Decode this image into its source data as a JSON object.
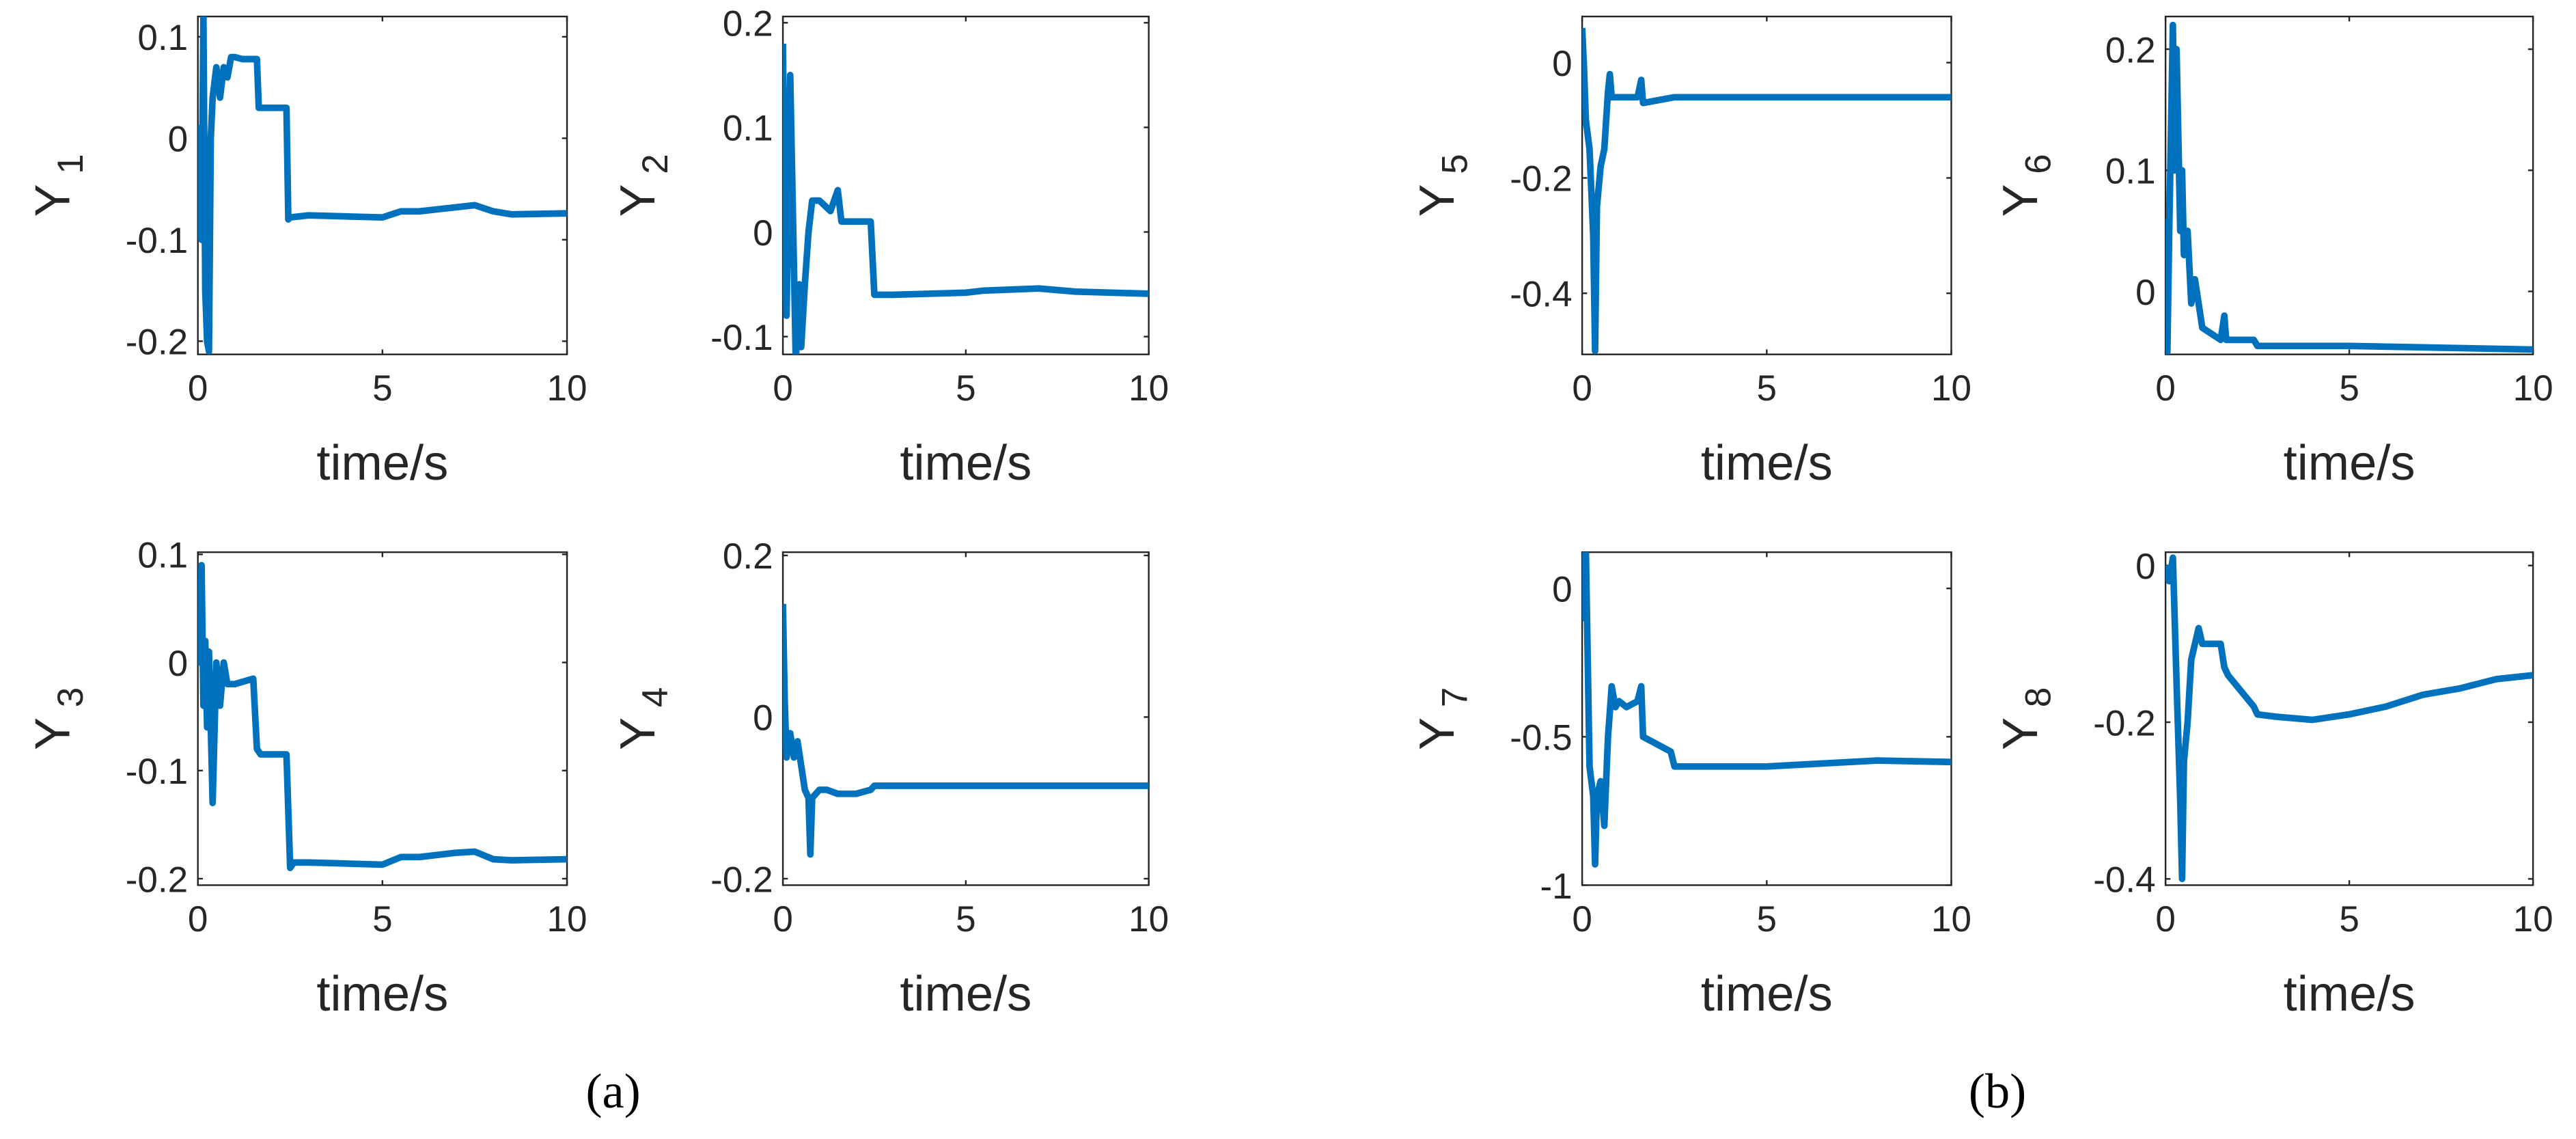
{
  "chart_data": [
    {
      "type": "line",
      "ylabel": "Y",
      "ylabel_subscript": "1",
      "xlabel": "time/s",
      "xlim": [
        0,
        10
      ],
      "xticks": [
        0,
        5,
        10
      ],
      "ylim": [
        -0.213,
        0.12
      ],
      "yticks": [
        -0.2,
        -0.1,
        0,
        0.1
      ],
      "series": [
        {
          "color": "#0072bd",
          "x": [
            0,
            0.05,
            0.1,
            0.15,
            0.2,
            0.25,
            0.3,
            0.35,
            0.4,
            0.5,
            0.6,
            0.7,
            0.8,
            0.9,
            1.0,
            1.2,
            1.6,
            1.65,
            2.4,
            2.45,
            2.5,
            3,
            4,
            5,
            5.5,
            6,
            7,
            7.5,
            8,
            8.5,
            10
          ],
          "values": [
            -0.1,
            0.01,
            -0.1,
            0.12,
            -0.15,
            -0.2,
            -0.21,
            0.0,
            0.04,
            0.07,
            0.04,
            0.07,
            0.06,
            0.08,
            0.08,
            0.078,
            0.078,
            0.03,
            0.03,
            -0.08,
            -0.078,
            -0.076,
            -0.077,
            -0.078,
            -0.072,
            -0.072,
            -0.068,
            -0.066,
            -0.072,
            -0.075,
            -0.074
          ]
        }
      ]
    },
    {
      "type": "line",
      "ylabel": "Y",
      "ylabel_subscript": "2",
      "xlabel": "time/s",
      "xlim": [
        0,
        10
      ],
      "xticks": [
        0,
        5,
        10
      ],
      "ylim": [
        -0.117,
        0.206
      ],
      "yticks": [
        -0.1,
        0,
        0.1,
        0.2
      ],
      "series": [
        {
          "color": "#0072bd",
          "x": [
            0,
            0.05,
            0.1,
            0.2,
            0.3,
            0.35,
            0.4,
            0.45,
            0.5,
            0.6,
            0.7,
            0.8,
            1.0,
            1.3,
            1.5,
            1.6,
            1.8,
            2.4,
            2.5,
            3,
            5,
            5.5,
            7,
            8,
            10
          ],
          "values": [
            0.18,
            0.02,
            -0.08,
            0.15,
            -0.03,
            -0.12,
            -0.1,
            -0.05,
            -0.11,
            -0.05,
            0.0,
            0.03,
            0.03,
            0.02,
            0.04,
            0.01,
            0.01,
            0.01,
            -0.06,
            -0.06,
            -0.058,
            -0.056,
            -0.054,
            -0.057,
            -0.059
          ]
        }
      ]
    },
    {
      "type": "line",
      "ylabel": "Y",
      "ylabel_subscript": "3",
      "xlabel": "time/s",
      "xlim": [
        0,
        10
      ],
      "xticks": [
        0,
        5,
        10
      ],
      "ylim": [
        -0.206,
        0.102
      ],
      "yticks": [
        -0.2,
        -0.1,
        0,
        0.1
      ],
      "series": [
        {
          "color": "#0072bd",
          "x": [
            0,
            0.05,
            0.1,
            0.15,
            0.2,
            0.25,
            0.3,
            0.4,
            0.5,
            0.6,
            0.7,
            0.8,
            0.9,
            1.0,
            1.5,
            1.6,
            1.7,
            2.4,
            2.5,
            2.6,
            3,
            4,
            5,
            5.5,
            6,
            7,
            7.5,
            8,
            8.5,
            10
          ],
          "values": [
            0.04,
            0.0,
            0.09,
            -0.04,
            0.02,
            -0.06,
            0.01,
            -0.13,
            0.0,
            -0.04,
            0.0,
            -0.02,
            -0.02,
            -0.02,
            -0.015,
            -0.08,
            -0.085,
            -0.085,
            -0.19,
            -0.185,
            -0.185,
            -0.186,
            -0.187,
            -0.18,
            -0.18,
            -0.176,
            -0.175,
            -0.182,
            -0.183,
            -0.182
          ]
        }
      ]
    },
    {
      "type": "line",
      "ylabel": "Y",
      "ylabel_subscript": "4",
      "xlabel": "time/s",
      "xlim": [
        0,
        10
      ],
      "xticks": [
        0,
        5,
        10
      ],
      "ylim": [
        -0.208,
        0.204
      ],
      "yticks": [
        -0.2,
        0,
        0.2
      ],
      "series": [
        {
          "color": "#0072bd",
          "x": [
            0,
            0.05,
            0.1,
            0.2,
            0.3,
            0.4,
            0.5,
            0.6,
            0.7,
            0.75,
            0.8,
            1.0,
            1.2,
            1.5,
            2,
            2.4,
            2.5,
            5,
            10
          ],
          "values": [
            0.14,
            0.02,
            -0.05,
            -0.02,
            -0.05,
            -0.03,
            -0.06,
            -0.09,
            -0.1,
            -0.17,
            -0.1,
            -0.09,
            -0.09,
            -0.095,
            -0.095,
            -0.09,
            -0.085,
            -0.085,
            -0.085
          ]
        }
      ]
    },
    {
      "type": "line",
      "ylabel": "Y",
      "ylabel_subscript": "5",
      "xlabel": "time/s",
      "xlim": [
        0,
        10
      ],
      "xticks": [
        0,
        5,
        10
      ],
      "ylim": [
        -0.506,
        0.08
      ],
      "yticks": [
        -0.4,
        -0.2,
        0
      ],
      "series": [
        {
          "color": "#0072bd",
          "x": [
            0,
            0.05,
            0.1,
            0.2,
            0.3,
            0.35,
            0.4,
            0.5,
            0.6,
            0.7,
            0.75,
            0.8,
            1,
            1.5,
            1.6,
            1.65,
            2.5,
            10
          ],
          "values": [
            0.06,
            -0.01,
            -0.1,
            -0.15,
            -0.3,
            -0.5,
            -0.25,
            -0.18,
            -0.15,
            -0.05,
            -0.02,
            -0.06,
            -0.06,
            -0.06,
            -0.03,
            -0.07,
            -0.06,
            -0.06
          ]
        }
      ]
    },
    {
      "type": "line",
      "ylabel": "Y",
      "ylabel_subscript": "6",
      "xlabel": "time/s",
      "xlim": [
        0,
        10
      ],
      "xticks": [
        0,
        5,
        10
      ],
      "ylim": [
        -0.052,
        0.227
      ],
      "yticks": [
        0,
        0.1,
        0.2
      ],
      "series": [
        {
          "color": "#0072bd",
          "x": [
            0,
            0.05,
            0.1,
            0.2,
            0.25,
            0.3,
            0.4,
            0.45,
            0.5,
            0.6,
            0.7,
            0.8,
            1.0,
            1.5,
            1.6,
            1.65,
            2.4,
            2.5,
            5,
            10
          ],
          "values": [
            0.06,
            -0.05,
            0.05,
            0.22,
            0.1,
            0.2,
            0.05,
            0.1,
            0.03,
            0.05,
            -0.01,
            0.01,
            -0.03,
            -0.04,
            -0.02,
            -0.04,
            -0.04,
            -0.045,
            -0.045,
            -0.048
          ]
        }
      ]
    },
    {
      "type": "line",
      "ylabel": "Y",
      "ylabel_subscript": "7",
      "xlabel": "time/s",
      "xlim": [
        0,
        10
      ],
      "xticks": [
        0,
        5,
        10
      ],
      "ylim": [
        -1,
        0.122
      ],
      "yticks": [
        -1,
        -0.5,
        0
      ],
      "series": [
        {
          "color": "#0072bd",
          "x": [
            0,
            0.05,
            0.1,
            0.2,
            0.3,
            0.35,
            0.4,
            0.5,
            0.6,
            0.7,
            0.8,
            0.9,
            1.0,
            1.2,
            1.5,
            1.6,
            1.65,
            2.4,
            2.5,
            5,
            8,
            10
          ],
          "values": [
            0.12,
            -0.1,
            0.13,
            -0.6,
            -0.7,
            -0.93,
            -0.7,
            -0.65,
            -0.8,
            -0.5,
            -0.33,
            -0.4,
            -0.38,
            -0.4,
            -0.38,
            -0.33,
            -0.5,
            -0.55,
            -0.6,
            -0.6,
            -0.58,
            -0.585
          ]
        }
      ]
    },
    {
      "type": "line",
      "ylabel": "Y",
      "ylabel_subscript": "8",
      "xlabel": "time/s",
      "xlim": [
        0,
        10
      ],
      "xticks": [
        0,
        5,
        10
      ],
      "ylim": [
        -0.408,
        0.017
      ],
      "yticks": [
        -0.4,
        -0.2,
        0
      ],
      "series": [
        {
          "color": "#0072bd",
          "x": [
            0,
            0.1,
            0.2,
            0.3,
            0.4,
            0.45,
            0.5,
            0.6,
            0.7,
            0.8,
            0.9,
            1.0,
            1.5,
            1.6,
            1.7,
            2.4,
            2.5,
            3,
            4,
            5,
            6,
            7,
            8,
            9,
            10
          ],
          "values": [
            0.0,
            -0.02,
            0.01,
            -0.15,
            -0.3,
            -0.4,
            -0.25,
            -0.2,
            -0.12,
            -0.1,
            -0.08,
            -0.1,
            -0.1,
            -0.13,
            -0.14,
            -0.18,
            -0.19,
            -0.193,
            -0.197,
            -0.19,
            -0.18,
            -0.165,
            -0.157,
            -0.145,
            -0.14
          ]
        }
      ]
    }
  ],
  "panel_labels": [
    "(a)",
    "(b)"
  ]
}
